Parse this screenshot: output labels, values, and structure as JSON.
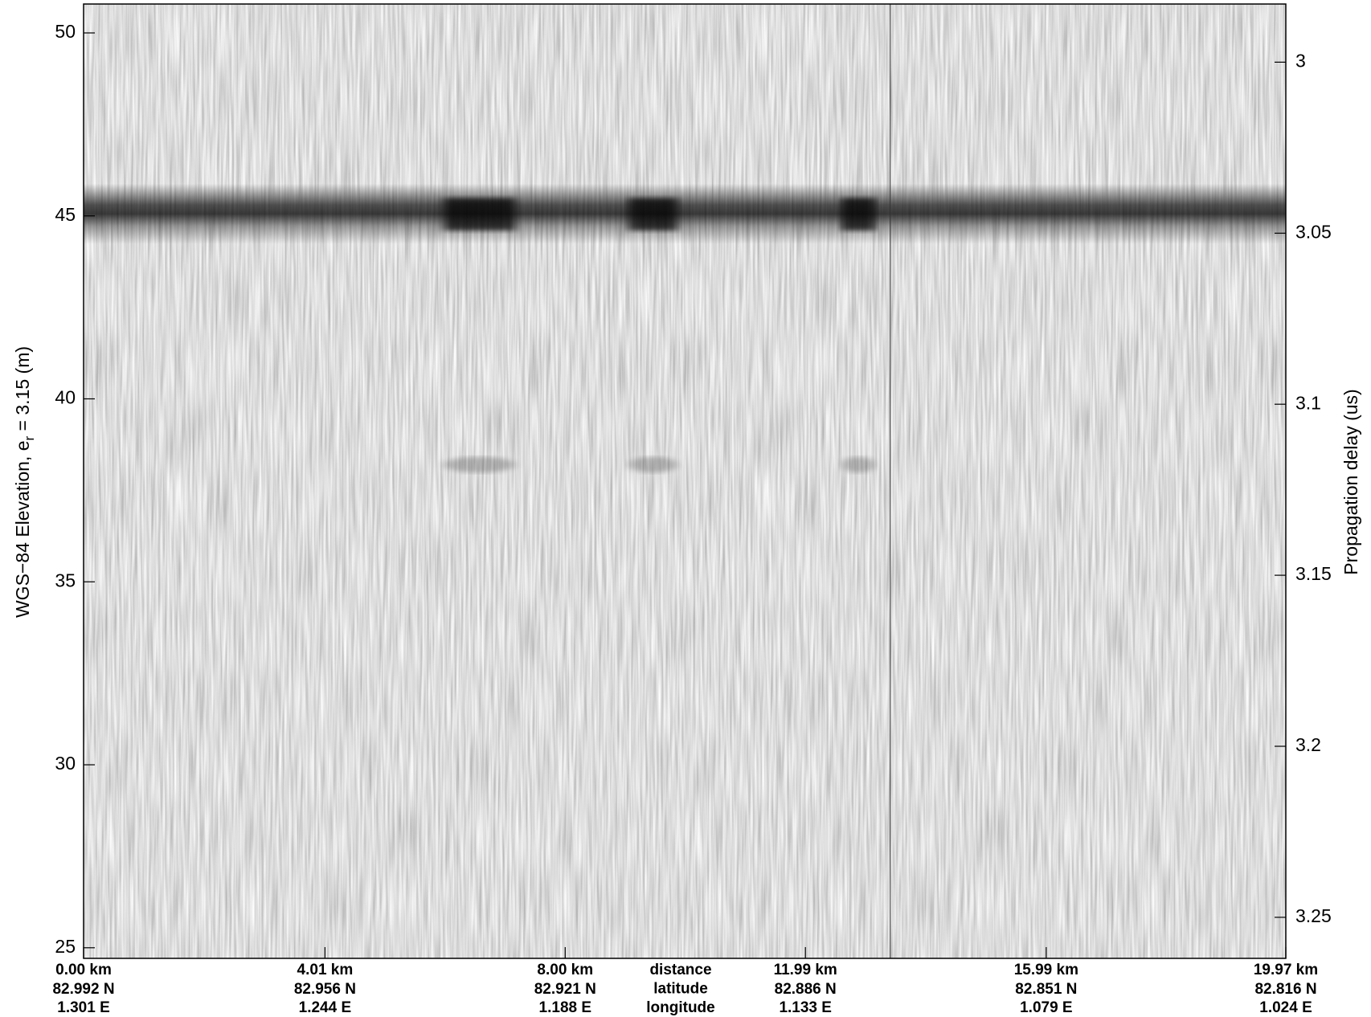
{
  "chart_data": {
    "type": "echogram",
    "y_label": "WGS−84 Elevation, e",
    "y_label_subscript": "r",
    "y_label_suffix": " = 3.15 (m)",
    "y2_label": "Propagation delay (us)",
    "ylim": [
      24.71,
      50.79
    ],
    "yticks": [
      25,
      30,
      35,
      40,
      45,
      50
    ],
    "y2lim": [
      2.983,
      3.262
    ],
    "y2ticks": [
      3,
      3.05,
      3.1,
      3.15,
      3.2,
      3.25
    ],
    "xlim": [
      0,
      19.97
    ],
    "xticks": [
      {
        "value": 0,
        "label": "0.00 km"
      },
      {
        "value": 4.01,
        "label": "4.01 km"
      },
      {
        "value": 8.0,
        "label": "8.00 km"
      },
      {
        "value": 11.99,
        "label": "11.99 km"
      },
      {
        "value": 15.99,
        "label": "15.99 km"
      },
      {
        "value": 19.97,
        "label": "19.97 km"
      }
    ],
    "tick_latitudes": [
      "82.992 N",
      "82.956 N",
      "82.921 N",
      "82.886 N",
      "82.851 N",
      "82.816 N"
    ],
    "tick_longitudes": [
      "1.301 E",
      "1.244 E",
      "1.188 E",
      "1.133 E",
      "1.079 E",
      "1.024 E"
    ],
    "row_names": [
      "distance",
      "latitude",
      "longitude"
    ],
    "surface_elevation": 45,
    "deep_elevation": 38.2,
    "bright_spots": [
      [
        5.99,
        7.16
      ],
      [
        9.06,
        9.86
      ],
      [
        12.59,
        13.15
      ]
    ],
    "vertical_line": 13.4
  }
}
